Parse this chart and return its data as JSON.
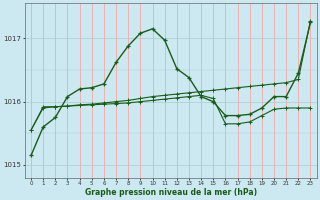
{
  "title": "Graphe pression niveau de la mer (hPa)",
  "bg_color": "#cce8f0",
  "grid_color_v": "#ff9999",
  "grid_color_h": "#aacccc",
  "line_color": "#1a5c1a",
  "xlim": [
    -0.5,
    23.5
  ],
  "ylim": [
    1014.8,
    1017.55
  ],
  "yticks": [
    1015,
    1016,
    1017
  ],
  "xticks": [
    0,
    1,
    2,
    3,
    4,
    5,
    6,
    7,
    8,
    9,
    10,
    11,
    12,
    13,
    14,
    15,
    16,
    17,
    18,
    19,
    20,
    21,
    22,
    23
  ],
  "series1": [
    1015.15,
    1015.6,
    1015.75,
    1016.08,
    1016.2,
    1016.22,
    1016.28,
    1016.62,
    1016.88,
    1017.08,
    1017.15,
    1016.97,
    1016.52,
    1016.38,
    1016.08,
    1016.0,
    1015.78,
    1015.78,
    1015.8,
    1015.9,
    1016.08,
    1016.08,
    1016.45,
    1017.25
  ],
  "series2": [
    1015.55,
    1015.92,
    1015.92,
    1015.93,
    1015.95,
    1015.96,
    1015.98,
    1016.0,
    1016.02,
    1016.05,
    1016.08,
    1016.1,
    1016.12,
    1016.14,
    1016.16,
    1016.18,
    1016.2,
    1016.22,
    1016.24,
    1016.26,
    1016.28,
    1016.3,
    1016.35,
    1017.28
  ],
  "series3": [
    1015.55,
    1015.9,
    1015.92,
    1015.93,
    1015.94,
    1015.95,
    1015.96,
    1015.97,
    1015.98,
    1016.0,
    1016.02,
    1016.04,
    1016.06,
    1016.08,
    1016.1,
    1016.05,
    1015.65,
    1015.65,
    1015.68,
    1015.78,
    1015.88,
    1015.9,
    1015.9,
    1015.9
  ]
}
